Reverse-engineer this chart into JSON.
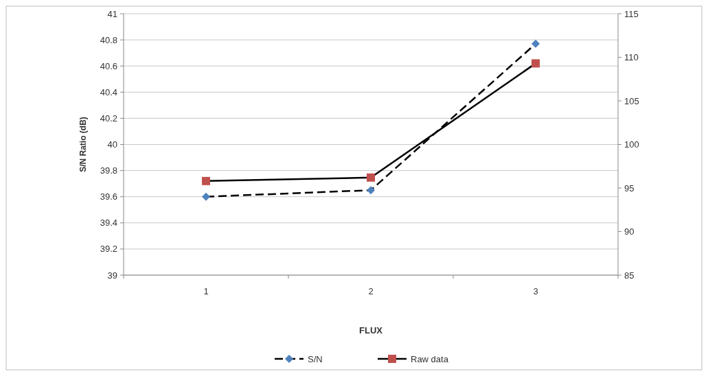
{
  "chart_data": {
    "type": "line",
    "xlabel": "FLUX",
    "ylabel": "S/N Ratio (dB)",
    "categories": [
      "1",
      "2",
      "3"
    ],
    "ylim": [
      39,
      41
    ],
    "yticks": [
      39,
      {
        "value": 39.2,
        "label": "39.2"
      },
      {
        "value": 39.4,
        "label": "39.4"
      },
      {
        "value": 39.6,
        "label": "39.6"
      },
      {
        "value": 39.8,
        "label": "39.8"
      },
      40,
      {
        "value": 40.2,
        "label": "40.2"
      },
      {
        "value": 40.4,
        "label": "40.4"
      },
      {
        "value": 40.6,
        "label": "40.6"
      },
      {
        "value": 40.8,
        "label": "40.8"
      },
      41
    ],
    "y2lim": [
      85,
      115
    ],
    "y2ticks": [
      85,
      90,
      95,
      100,
      105,
      110,
      115
    ],
    "grid": "y",
    "legend": "bottom",
    "series": [
      {
        "name": "S/N",
        "color": "#4f81bd",
        "values": [
          39.6,
          39.65,
          40.77
        ],
        "marker": "diamond",
        "line_style": "dashed"
      },
      {
        "name": "Raw data",
        "color": "#c0504d",
        "values": [
          95.8,
          96.2,
          109.3
        ],
        "marker": "square",
        "line_style": "solid",
        "axis": "y2"
      }
    ]
  }
}
